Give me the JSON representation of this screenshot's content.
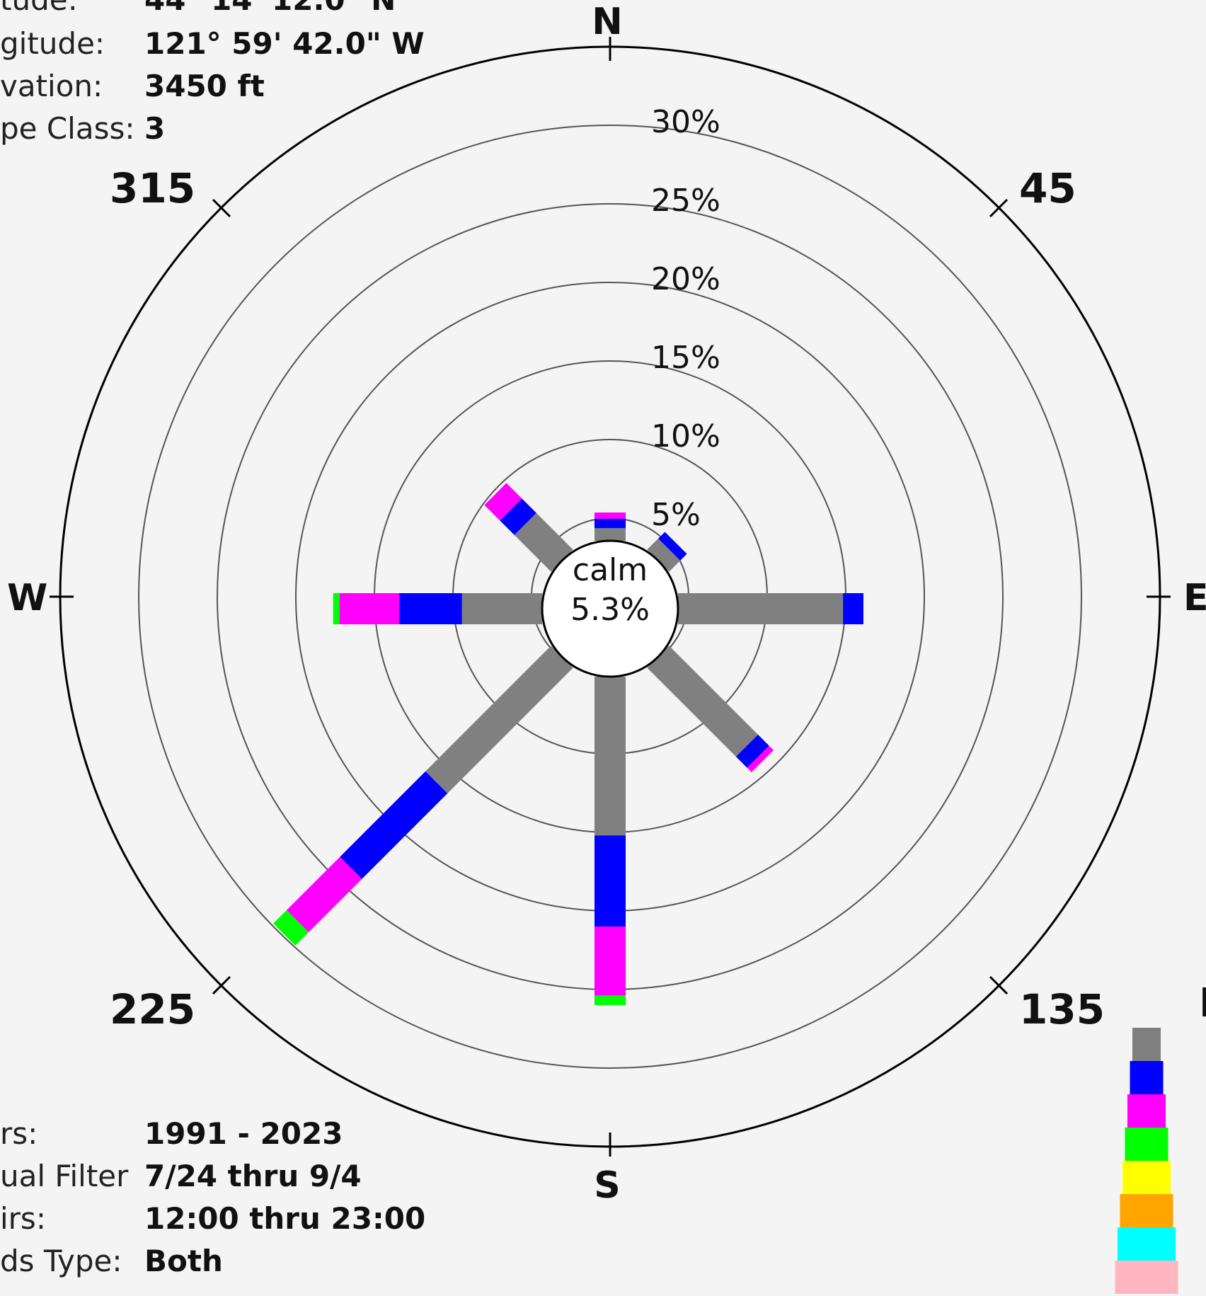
{
  "station_info": {
    "latitude_label": "tude:",
    "latitude_value": "44° 14' 12.0\" N",
    "longitude_label": "gitude:",
    "longitude_value": "121° 59' 42.0\" W",
    "elevation_label": "vation:",
    "elevation_value": "3450 ft",
    "class_label": "pe Class:",
    "class_value": "3"
  },
  "filter_info": {
    "years_label": "rs:",
    "years_value": "1991 - 2023",
    "annual_label": "ual Filter",
    "annual_value": "7/24 thru 9/4",
    "hours_label": "irs:",
    "hours_value": "12:00 thru 23:00",
    "winds_label": "ds Type:",
    "winds_value": "Both"
  },
  "compass": {
    "north": "N",
    "east": "E",
    "south": "S",
    "west": "W",
    "deg_45": "45",
    "deg_135": "135",
    "deg_225": "225",
    "deg_315": "315"
  },
  "calm": {
    "label": "calm",
    "value": "5.3%"
  },
  "legend_partial_title": "I",
  "chart_data": {
    "type": "windrose",
    "radial_unit": "%",
    "radial_ticks": [
      "5%",
      "10%",
      "15%",
      "20%",
      "25%",
      "30%"
    ],
    "radial_tick_values": [
      5,
      10,
      15,
      20,
      25,
      30
    ],
    "rmax": 35,
    "calm_percent": 5.3,
    "speed_bin_colors": [
      "#808080",
      "#0000ff",
      "#ff00ff",
      "#00ff00",
      "#ffff00",
      "#ffa500",
      "#00ffff",
      "#ffb6c1"
    ],
    "directions": [
      {
        "dir": "N",
        "angle": 0,
        "segments": [
          0.8,
          0.6,
          0.4
        ]
      },
      {
        "dir": "NE",
        "angle": 45,
        "segments": [
          1.0,
          0.6
        ]
      },
      {
        "dir": "E",
        "angle": 90,
        "segments": [
          10.5,
          1.3
        ]
      },
      {
        "dir": "SE",
        "angle": 135,
        "segments": [
          8.0,
          1.0,
          0.4
        ]
      },
      {
        "dir": "S",
        "angle": 180,
        "segments": [
          10.1,
          5.8,
          4.4,
          0.6
        ]
      },
      {
        "dir": "SW",
        "angle": 225,
        "segments": [
          11.3,
          7.7,
          4.8,
          1.2
        ]
      },
      {
        "dir": "W",
        "angle": 270,
        "segments": [
          5.1,
          4.0,
          3.8,
          0.4
        ]
      },
      {
        "dir": "NW",
        "angle": 315,
        "segments": [
          3.3,
          1.3,
          1.4
        ]
      }
    ]
  }
}
